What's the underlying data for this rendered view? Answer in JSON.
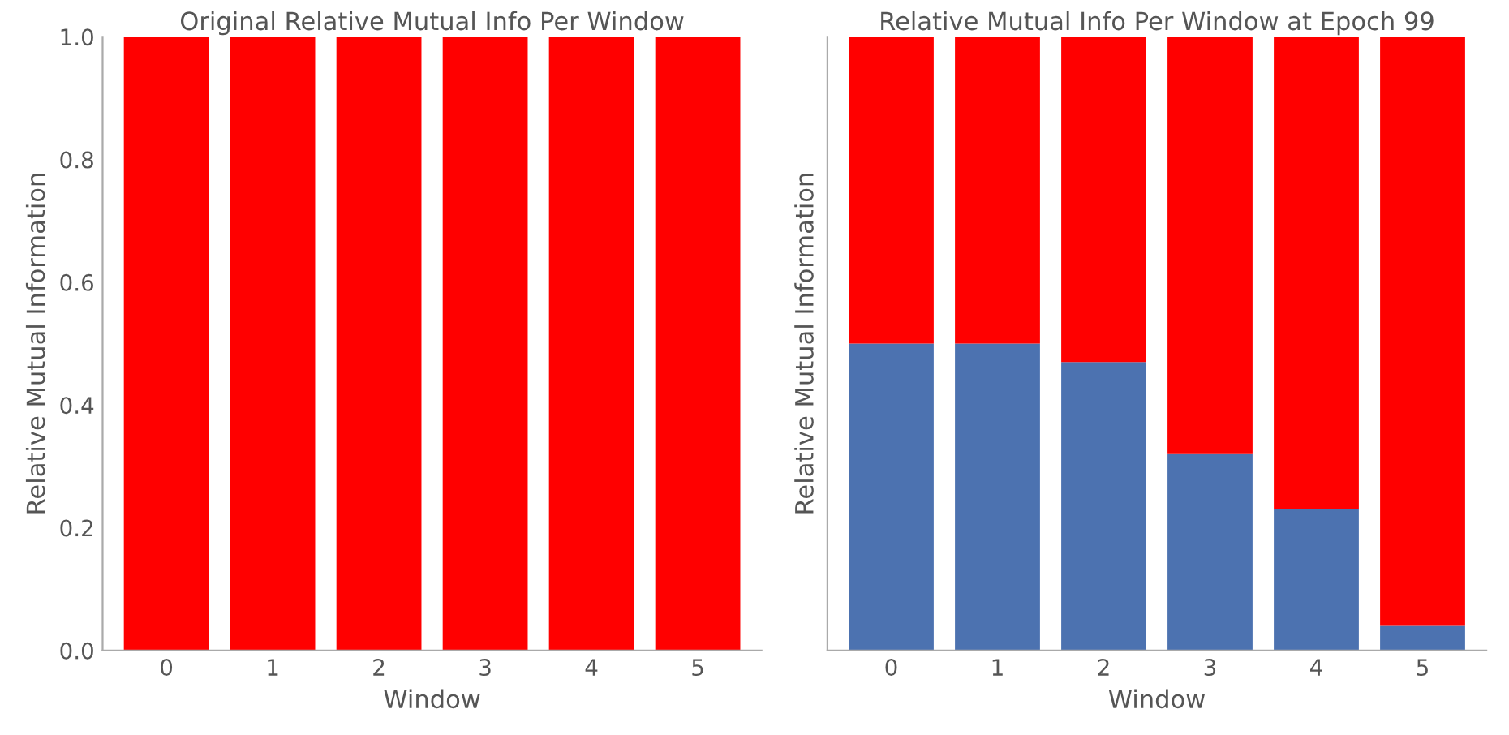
{
  "chart_data": [
    {
      "type": "bar",
      "title": "Original Relative Mutual Info Per Window",
      "xlabel": "Window",
      "ylabel": "Relative Mutual Information",
      "categories": [
        "0",
        "1",
        "2",
        "3",
        "4",
        "5"
      ],
      "stacked": true,
      "series": [
        {
          "color": "#ff0000",
          "values": [
            1.0,
            1.0,
            1.0,
            1.0,
            1.0,
            1.0
          ]
        }
      ],
      "ylim": [
        0,
        1.0
      ],
      "yticks": [
        {
          "value": 0,
          "label": "0.0"
        },
        {
          "value": 0.2,
          "label": "0.2"
        },
        {
          "value": 0.4,
          "label": "0.4"
        },
        {
          "value": 0.6,
          "label": "0.6"
        },
        {
          "value": 0.8,
          "label": "0.8"
        },
        {
          "value": 1.0,
          "label": "1.0"
        }
      ],
      "grid": false
    },
    {
      "type": "bar",
      "title": "Relative Mutual Info Per Window at Epoch 99",
      "xlabel": "Window",
      "ylabel": "Relative Mutual Information",
      "categories": [
        "0",
        "1",
        "2",
        "3",
        "4",
        "5"
      ],
      "stacked": true,
      "series": [
        {
          "color": "#4c72b0",
          "values": [
            0.5,
            0.5,
            0.47,
            0.32,
            0.23,
            0.04
          ]
        },
        {
          "color": "#ff0000",
          "values": [
            0.5,
            0.5,
            0.53,
            0.68,
            0.77,
            0.96
          ]
        }
      ],
      "ylim": [
        0,
        1.0
      ],
      "tick_labels": "x",
      "grid": false
    }
  ]
}
